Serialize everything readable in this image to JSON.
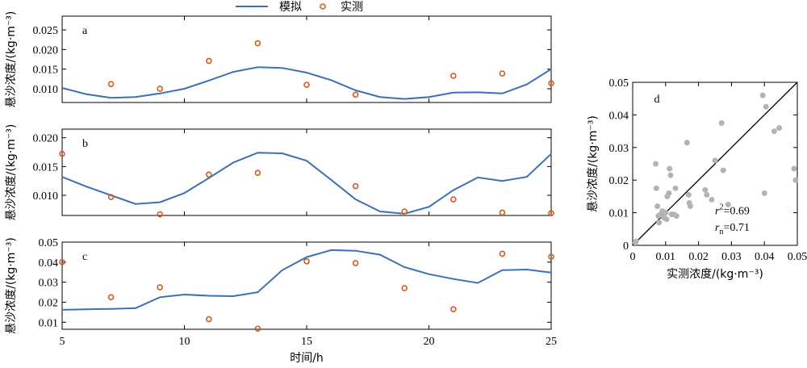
{
  "legend": {
    "line_label": "模拟",
    "marker_label": "实测"
  },
  "colors": {
    "line": "#3c6fb8",
    "marker": "#d45a22",
    "scatter": "#b3b3b3",
    "axis": "#000000"
  },
  "chart_data": [
    {
      "type": "line",
      "panel_label": "a",
      "ylabel": "悬沙浓度/(kg·m⁻³)",
      "xlim": [
        5,
        25
      ],
      "ylim": [
        0.0065,
        0.0285
      ],
      "yticks": [
        "0.010",
        "0.015",
        "0.020",
        "0.025"
      ],
      "ytick_values": [
        0.01,
        0.015,
        0.02,
        0.025
      ],
      "series": [
        {
          "name": "模拟",
          "kind": "line",
          "x": [
            5,
            6,
            7,
            8,
            9,
            10,
            11,
            12,
            13,
            14,
            15,
            16,
            17,
            18,
            19,
            20,
            21,
            22,
            23,
            24,
            25
          ],
          "y": [
            0.0102,
            0.0086,
            0.0077,
            0.0079,
            0.0088,
            0.01,
            0.0121,
            0.0143,
            0.0155,
            0.0153,
            0.0141,
            0.0122,
            0.0096,
            0.0079,
            0.0074,
            0.0079,
            0.009,
            0.0091,
            0.0088,
            0.0111,
            0.015
          ]
        },
        {
          "name": "实测",
          "kind": "marker",
          "x": [
            7,
            9,
            11,
            13,
            15,
            17,
            21,
            23,
            25
          ],
          "y": [
            0.0112,
            0.01,
            0.0171,
            0.0216,
            0.011,
            0.0085,
            0.0133,
            0.0139,
            0.0114
          ]
        }
      ]
    },
    {
      "type": "line",
      "panel_label": "b",
      "ylabel": "悬沙浓度/(kg·m⁻³)",
      "xlim": [
        5,
        25
      ],
      "ylim": [
        0.0065,
        0.0215
      ],
      "yticks": [
        "0.010",
        "0.015",
        "0.020"
      ],
      "ytick_values": [
        0.01,
        0.015,
        0.02
      ],
      "series": [
        {
          "name": "模拟",
          "kind": "line",
          "x": [
            5,
            6,
            7,
            8,
            9,
            10,
            11,
            12,
            13,
            14,
            15,
            16,
            17,
            18,
            19,
            20,
            21,
            22,
            23,
            24,
            25
          ],
          "y": [
            0.0132,
            0.0115,
            0.01,
            0.0085,
            0.0088,
            0.0104,
            0.013,
            0.0157,
            0.0174,
            0.0173,
            0.016,
            0.0127,
            0.0093,
            0.0072,
            0.0068,
            0.008,
            0.0109,
            0.0131,
            0.0125,
            0.0132,
            0.0172
          ]
        },
        {
          "name": "实测",
          "kind": "marker",
          "x": [
            5,
            7,
            9,
            11,
            13,
            17,
            19,
            21,
            23,
            25
          ],
          "y": [
            0.0172,
            0.0097,
            0.0067,
            0.0136,
            0.0139,
            0.0116,
            0.0072,
            0.0093,
            0.007,
            0.0069
          ]
        }
      ]
    },
    {
      "type": "line",
      "panel_label": "c",
      "ylabel": "悬沙浓度/(kg·m⁻³)",
      "xlabel": "时间/h",
      "xlim": [
        5,
        25
      ],
      "ylim": [
        0.0065,
        0.05
      ],
      "xticks": [
        "5",
        "10",
        "15",
        "20",
        "25"
      ],
      "xtick_values": [
        5,
        10,
        15,
        20,
        25
      ],
      "yticks": [
        "0.01",
        "0.02",
        "0.03",
        "0.04",
        "0.05"
      ],
      "ytick_values": [
        0.01,
        0.02,
        0.03,
        0.04,
        0.05
      ],
      "series": [
        {
          "name": "模拟",
          "kind": "line",
          "x": [
            5,
            6,
            7,
            8,
            9,
            10,
            11,
            12,
            13,
            14,
            15,
            16,
            17,
            18,
            19,
            20,
            21,
            22,
            23,
            24,
            25
          ],
          "y": [
            0.0162,
            0.0165,
            0.0167,
            0.017,
            0.0225,
            0.0238,
            0.0232,
            0.023,
            0.025,
            0.036,
            0.0425,
            0.046,
            0.0457,
            0.0437,
            0.0375,
            0.034,
            0.0316,
            0.0296,
            0.036,
            0.0363,
            0.0348
          ]
        },
        {
          "name": "实测",
          "kind": "marker",
          "x": [
            5,
            7,
            9,
            11,
            13,
            15,
            17,
            19,
            21,
            23,
            25
          ],
          "y": [
            0.04,
            0.0225,
            0.0274,
            0.0115,
            0.0068,
            0.0404,
            0.0395,
            0.027,
            0.0165,
            0.0442,
            0.0427
          ]
        }
      ]
    },
    {
      "type": "scatter",
      "panel_label": "d",
      "xlabel": "实测浓度/(kg·m⁻³)",
      "ylabel": "悬沙浓度/(kg·m⁻³)",
      "xlim": [
        0,
        0.05
      ],
      "ylim": [
        0,
        0.05
      ],
      "xticks": [
        "0",
        "0.01",
        "0.02",
        "0.03",
        "0.04",
        "0.05"
      ],
      "yticks": [
        "0",
        "0.01",
        "0.02",
        "0.03",
        "0.04",
        "0.05"
      ],
      "tick_values": [
        0,
        0.01,
        0.02,
        0.03,
        0.04,
        0.05
      ],
      "stats": {
        "r2_label": "r",
        "r2_sup": "2",
        "r2_value": "=0.69",
        "rn_label": "r",
        "rn_sub": "n",
        "rn_value": "=0.71"
      },
      "reference_line": {
        "x": [
          0,
          0.05
        ],
        "y": [
          0,
          0.05
        ]
      },
      "points": [
        [
          0.0008,
          0.0008
        ],
        [
          0.001,
          0.0012
        ],
        [
          0.007,
          0.025
        ],
        [
          0.0072,
          0.0175
        ],
        [
          0.0075,
          0.012
        ],
        [
          0.0078,
          0.009
        ],
        [
          0.008,
          0.007
        ],
        [
          0.0085,
          0.0095
        ],
        [
          0.009,
          0.0105
        ],
        [
          0.0095,
          0.0085
        ],
        [
          0.01,
          0.01
        ],
        [
          0.0103,
          0.008
        ],
        [
          0.0105,
          0.015
        ],
        [
          0.011,
          0.016
        ],
        [
          0.0112,
          0.0235
        ],
        [
          0.0115,
          0.0215
        ],
        [
          0.0118,
          0.0095
        ],
        [
          0.0125,
          0.0095
        ],
        [
          0.013,
          0.0175
        ],
        [
          0.0133,
          0.009
        ],
        [
          0.0165,
          0.0315
        ],
        [
          0.017,
          0.0155
        ],
        [
          0.0172,
          0.013
        ],
        [
          0.0175,
          0.012
        ],
        [
          0.022,
          0.017
        ],
        [
          0.0225,
          0.0155
        ],
        [
          0.024,
          0.014
        ],
        [
          0.025,
          0.026
        ],
        [
          0.027,
          0.0375
        ],
        [
          0.0275,
          0.023
        ],
        [
          0.029,
          0.0125
        ],
        [
          0.0395,
          0.046
        ],
        [
          0.04,
          0.016
        ],
        [
          0.0405,
          0.0425
        ],
        [
          0.043,
          0.035
        ],
        [
          0.0445,
          0.036
        ],
        [
          0.049,
          0.0235
        ],
        [
          0.0495,
          0.02
        ]
      ]
    }
  ]
}
